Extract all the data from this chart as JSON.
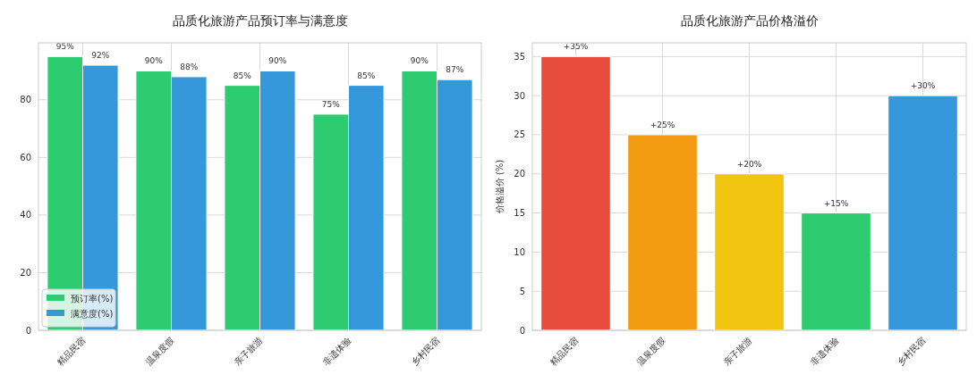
{
  "chart_data": [
    {
      "type": "bar",
      "title": "品质化旅游产品预订率与满意度",
      "categories": [
        "精品民宿",
        "温泉度假",
        "亲子旅游",
        "非遗体验",
        "乡村民宿"
      ],
      "series": [
        {
          "name": "预订率(%)",
          "color": "#2ecc71",
          "values": [
            95,
            90,
            85,
            75,
            90
          ],
          "value_labels": [
            "95%",
            "90%",
            "85%",
            "75%",
            "90%"
          ]
        },
        {
          "name": "满意度(%)",
          "color": "#3498db",
          "values": [
            92,
            88,
            90,
            85,
            87
          ],
          "value_labels": [
            "92%",
            "88%",
            "90%",
            "85%",
            "87%"
          ]
        }
      ],
      "ylim": [
        0,
        99.75
      ],
      "yticks": [
        0,
        20,
        40,
        60,
        80
      ],
      "grid": true,
      "legend": "bottom left"
    },
    {
      "type": "bar",
      "title": "品质化旅游产品价格溢价",
      "ylabel": "价格溢价 (%)",
      "categories": [
        "精品民宿",
        "温泉度假",
        "亲子旅游",
        "非遗体验",
        "乡村民宿"
      ],
      "values": [
        35,
        25,
        20,
        15,
        30
      ],
      "colors": [
        "#e74c3c",
        "#f39c12",
        "#f1c40f",
        "#2ecc71",
        "#3498db"
      ],
      "value_labels": [
        "+35%",
        "+25%",
        "+20%",
        "+15%",
        "+30%"
      ],
      "ylim": [
        0,
        36.75
      ],
      "yticks": [
        0,
        5,
        10,
        15,
        20,
        25,
        30,
        35
      ],
      "grid": true
    }
  ]
}
